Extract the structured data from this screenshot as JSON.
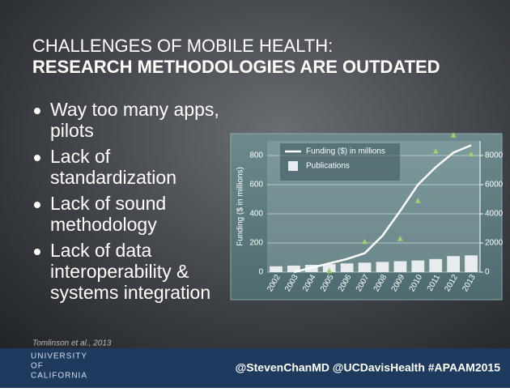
{
  "title": [
    "CHALLENGES OF MOBILE HEALTH:",
    "RESEARCH METHODOLOGIES ARE OUTDATED"
  ],
  "bullets": [
    [
      "Way too many apps,",
      "pilots"
    ],
    [
      "Lack of",
      "standardization"
    ],
    [
      "Lack of sound",
      "methodology"
    ],
    [
      "Lack of data",
      "interoperability &",
      "systems integration"
    ]
  ],
  "citation": "Tomlinson et al., 2013",
  "logo": [
    "UNIVERSITY",
    "OF",
    "CALIFORNIA"
  ],
  "footer": "@StevenChanMD @UCDavisHealth #APAAM2015",
  "chart_data": {
    "type": "bar",
    "ylabel": "Funding ($ in millions)",
    "categories": [
      "2002",
      "2003",
      "2004",
      "2005",
      "2006",
      "2007",
      "2008",
      "2009",
      "2010",
      "2011",
      "2012",
      "2013"
    ],
    "ylim": [
      0,
      900
    ],
    "yticks": [
      0,
      200,
      400,
      600,
      800
    ],
    "y2lim": [
      0,
      9000
    ],
    "y2ticks": [
      0,
      2000,
      4000,
      6000,
      8000
    ],
    "grid": true,
    "series": [
      {
        "name": "Publications",
        "type": "bar",
        "axis": "y2",
        "color": "#e8ecee",
        "values": [
          400,
          450,
          500,
          550,
          600,
          650,
          700,
          750,
          800,
          900,
          1100,
          1150
        ]
      },
      {
        "name": "Funding ($) in millions",
        "type": "line",
        "color": "#ffffff",
        "values": [
          null,
          0,
          30,
          60,
          90,
          130,
          250,
          420,
          600,
          720,
          820,
          870
        ]
      },
      {
        "type": "triangle",
        "color": "#9fd36a",
        "values": [
          null,
          null,
          null,
          10,
          null,
          210,
          null,
          230,
          490,
          830,
          940,
          810
        ]
      }
    ]
  }
}
